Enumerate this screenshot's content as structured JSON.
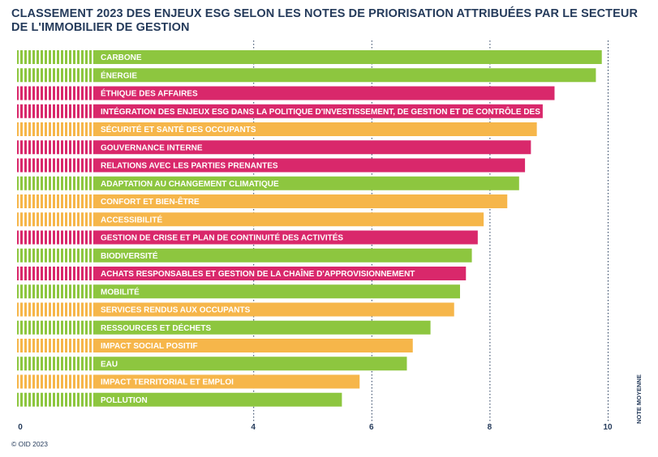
{
  "chart_data": {
    "type": "bar",
    "orientation": "horizontal",
    "title": "CLASSEMENT 2023 DES ENJEUX ESG SELON LES NOTES DE PRIORISATION ATTRIBUÉES PAR LE SECTEUR DE L'IMMOBILIER DE GESTION",
    "ylabel": "NOTE MOYENNE",
    "xlim": [
      0,
      10
    ],
    "xticks": [
      0,
      4,
      6,
      8,
      10
    ],
    "grid": "vertical dotted",
    "colors": {
      "green": "#8dc63f",
      "magenta": "#d9286b",
      "orange": "#f6b64a"
    },
    "categories": [
      "CARBONE",
      "ÉNERGIE",
      "ÉTHIQUE DES AFFAIRES",
      "INTÉGRATION DES ENJEUX ESG DANS LA POLITIQUE D'INVESTISSEMENT, DE GESTION ET DE CONTRÔLE DES RISQUES",
      "SÉCURITÉ ET SANTÉ DES OCCUPANTS",
      "GOUVERNANCE INTERNE",
      "RELATIONS AVEC LES PARTIES PRENANTES",
      "ADAPTATION AU CHANGEMENT CLIMATIQUE",
      "CONFORT ET BIEN-ÊTRE",
      "ACCESSIBILITÉ",
      "GESTION DE CRISE ET PLAN DE CONTINUITÉ DES ACTIVITÉS",
      "BIODIVERSITÉ",
      "ACHATS RESPONSABLES ET GESTION DE LA CHAÎNE D'APPROVISIONNEMENT",
      "MOBILITÉ",
      "SERVICES RENDUS AUX OCCUPANTS",
      "RESSOURCES ET DÉCHETS",
      "IMPACT SOCIAL POSITIF",
      "EAU",
      "IMPACT TERRITORIAL ET EMPLOI",
      "POLLUTION"
    ],
    "values": [
      9.9,
      9.8,
      9.1,
      8.9,
      8.8,
      8.7,
      8.6,
      8.5,
      8.3,
      7.9,
      7.8,
      7.7,
      7.6,
      7.5,
      7.4,
      7.0,
      6.7,
      6.6,
      5.8,
      5.5
    ],
    "bar_colors": [
      "green",
      "green",
      "magenta",
      "magenta",
      "orange",
      "magenta",
      "magenta",
      "green",
      "orange",
      "orange",
      "magenta",
      "green",
      "magenta",
      "green",
      "orange",
      "green",
      "orange",
      "green",
      "orange",
      "green"
    ]
  },
  "footer": {
    "copyright": "© OID 2023"
  }
}
